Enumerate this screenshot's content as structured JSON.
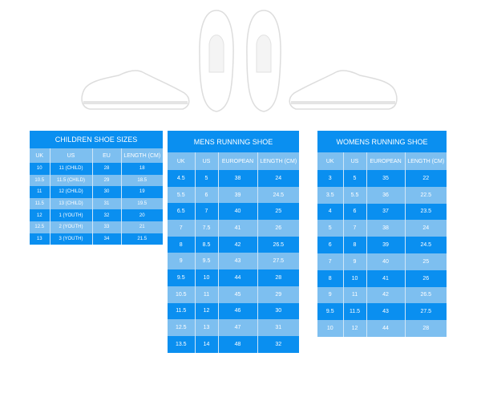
{
  "colors": {
    "dark_row": "#0a8ff0",
    "light_row": "#7dbff0"
  },
  "images": [
    "shoe-side-left",
    "shoe-top-left",
    "shoe-top-right",
    "shoe-side-right"
  ],
  "children": {
    "title": "CHILDREN SHOE SIZES",
    "headers": [
      "UK",
      "US",
      "EU",
      "LENGTH (CM)"
    ],
    "rows": [
      [
        "10",
        "11 (CHILD)",
        "28",
        "18"
      ],
      [
        "10.5",
        "11.5 (CHILD)",
        "29",
        "18.5"
      ],
      [
        "11",
        "12 (CHILD)",
        "30",
        "19"
      ],
      [
        "11.5",
        "13 (CHILD)",
        "31",
        "19.5"
      ],
      [
        "12",
        "1 (YOUTH)",
        "32",
        "20"
      ],
      [
        "12.5",
        "2 (YOUTH)",
        "33",
        "21"
      ],
      [
        "13",
        "3 (YOUTH)",
        "34",
        "21.5"
      ]
    ]
  },
  "mens": {
    "title": "MENS RUNNING SHOE",
    "headers": [
      "UK",
      "US",
      "EUROPEAN",
      "LENGTH (CM)"
    ],
    "rows": [
      [
        "4.5",
        "5",
        "38",
        "24"
      ],
      [
        "5.5",
        "6",
        "39",
        "24.5"
      ],
      [
        "6.5",
        "7",
        "40",
        "25"
      ],
      [
        "7",
        "7.5",
        "41",
        "26"
      ],
      [
        "8",
        "8.5",
        "42",
        "26.5"
      ],
      [
        "9",
        "9.5",
        "43",
        "27.5"
      ],
      [
        "9.5",
        "10",
        "44",
        "28"
      ],
      [
        "10.5",
        "11",
        "45",
        "29"
      ],
      [
        "11.5",
        "12",
        "46",
        "30"
      ],
      [
        "12.5",
        "13",
        "47",
        "31"
      ],
      [
        "13.5",
        "14",
        "48",
        "32"
      ]
    ]
  },
  "womens": {
    "title": "WOMENS RUNNING SHOE",
    "headers": [
      "UK",
      "US",
      "EUROPEAN",
      "LENGTH (CM)"
    ],
    "rows": [
      [
        "3",
        "5",
        "35",
        "22"
      ],
      [
        "3.5",
        "5.5",
        "36",
        "22.5"
      ],
      [
        "4",
        "6",
        "37",
        "23.5"
      ],
      [
        "5",
        "7",
        "38",
        "24"
      ],
      [
        "6",
        "8",
        "39",
        "24.5"
      ],
      [
        "7",
        "9",
        "40",
        "25"
      ],
      [
        "8",
        "10",
        "41",
        "26"
      ],
      [
        "9",
        "11",
        "42",
        "26.5"
      ],
      [
        "9.5",
        "11.5",
        "43",
        "27.5"
      ],
      [
        "10",
        "12",
        "44",
        "28"
      ]
    ]
  }
}
